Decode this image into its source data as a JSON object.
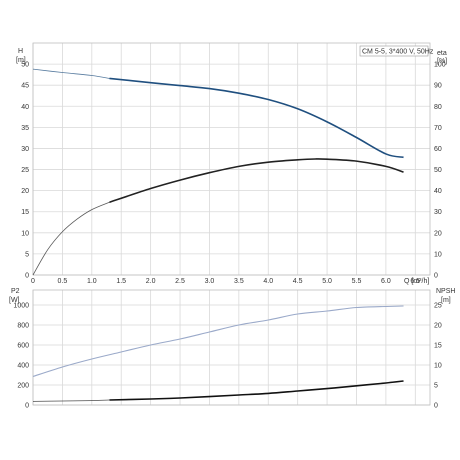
{
  "chart_data": [
    {
      "type": "line",
      "title": "CM 5-5, 3*400 V, 50Hz",
      "xlabel": "Q [m³/h]",
      "ylabel_left": "H",
      "ylabel_left_unit": "[m]",
      "ylabel_right": "eta",
      "ylabel_right_unit": "[%]",
      "xlim": [
        0,
        6.75
      ],
      "ylim_left": [
        0,
        55
      ],
      "ylim_right": [
        0,
        110
      ],
      "x_ticks": [
        "0",
        "0.5",
        "1.0",
        "1.5",
        "2.0",
        "2.5",
        "3.0",
        "3.5",
        "4.0",
        "4.5",
        "5.0",
        "5.5",
        "6.0",
        "6.5"
      ],
      "y_left_ticks": [
        "0",
        "5",
        "10",
        "15",
        "20",
        "25",
        "30",
        "35",
        "40",
        "45",
        "50"
      ],
      "y_right_ticks": [
        "0",
        "10",
        "20",
        "30",
        "40",
        "50",
        "60",
        "70",
        "80",
        "90",
        "100"
      ],
      "grid": true,
      "series": [
        {
          "name": "H",
          "axis": "left",
          "color": "#1f4f7f",
          "points": [
            [
              0,
              48.8
            ],
            [
              0.5,
              48.0
            ],
            [
              1.0,
              47.3
            ],
            [
              1.3,
              46.6
            ],
            [
              2.0,
              45.6
            ],
            [
              2.5,
              44.9
            ],
            [
              3.0,
              44.2
            ],
            [
              3.5,
              43.1
            ],
            [
              4.0,
              41.6
            ],
            [
              4.5,
              39.4
            ],
            [
              5.0,
              36.3
            ],
            [
              5.5,
              32.6
            ],
            [
              6.0,
              28.7
            ],
            [
              6.3,
              27.9
            ]
          ],
          "thin_until_x": 1.3
        },
        {
          "name": "eta",
          "axis": "right",
          "color": "#222222",
          "points": [
            [
              0,
              0
            ],
            [
              0.25,
              12
            ],
            [
              0.5,
              20.5
            ],
            [
              0.75,
              26.5
            ],
            [
              1.0,
              31
            ],
            [
              1.3,
              34.5
            ],
            [
              2.0,
              41
            ],
            [
              2.5,
              45
            ],
            [
              3.0,
              48.5
            ],
            [
              3.5,
              51.5
            ],
            [
              4.0,
              53.5
            ],
            [
              4.5,
              54.6
            ],
            [
              4.8,
              55
            ],
            [
              5.0,
              54.9
            ],
            [
              5.5,
              54
            ],
            [
              6.0,
              51.5
            ],
            [
              6.3,
              48.8
            ]
          ],
          "thin_until_x": 1.3
        }
      ]
    },
    {
      "type": "line",
      "ylabel_left": "P2",
      "ylabel_left_unit": "[W]",
      "ylabel_right": "NPSH",
      "ylabel_right_unit": "[m]",
      "xlim": [
        0,
        6.75
      ],
      "ylim_left": [
        0,
        1150
      ],
      "ylim_right": [
        0,
        28.75
      ],
      "y_left_ticks": [
        "0",
        "200",
        "400",
        "600",
        "800",
        "1000"
      ],
      "y_right_ticks": [
        "0",
        "5",
        "10",
        "15",
        "20",
        "25"
      ],
      "grid": true,
      "series": [
        {
          "name": "P2",
          "axis": "left",
          "color": "#9aa9c9",
          "points": [
            [
              0,
              285
            ],
            [
              0.5,
              380
            ],
            [
              1.0,
              460
            ],
            [
              1.5,
              530
            ],
            [
              2.0,
              600
            ],
            [
              2.5,
              660
            ],
            [
              3.0,
              730
            ],
            [
              3.5,
              800
            ],
            [
              4.0,
              850
            ],
            [
              4.5,
              910
            ],
            [
              5.0,
              940
            ],
            [
              5.5,
              975
            ],
            [
              6.0,
              985
            ],
            [
              6.3,
              990
            ]
          ],
          "thin_until_x": 0
        },
        {
          "name": "NPSH",
          "axis": "right",
          "color": "#111111",
          "points": [
            [
              0,
              0.9
            ],
            [
              0.5,
              1.0
            ],
            [
              1.0,
              1.1
            ],
            [
              1.3,
              1.25
            ],
            [
              2.0,
              1.5
            ],
            [
              2.5,
              1.75
            ],
            [
              3.0,
              2.1
            ],
            [
              3.5,
              2.5
            ],
            [
              4.0,
              2.9
            ],
            [
              4.5,
              3.5
            ],
            [
              5.0,
              4.1
            ],
            [
              5.5,
              4.8
            ],
            [
              6.0,
              5.5
            ],
            [
              6.3,
              6.0
            ]
          ],
          "thin_until_x": 1.3
        }
      ]
    }
  ]
}
